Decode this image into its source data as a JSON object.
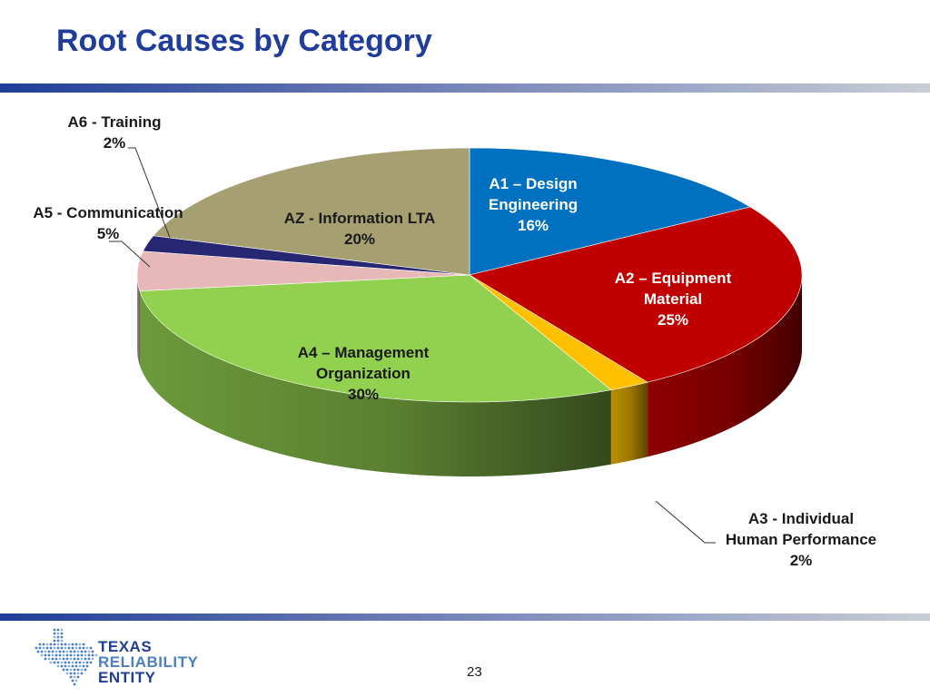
{
  "slide": {
    "title": "Root Causes by Category",
    "page_number": "23"
  },
  "logo": {
    "line1": "TEXAS",
    "line2": "RELIABILITY",
    "line3": "ENTITY"
  },
  "chart_data": {
    "type": "pie",
    "title": "",
    "start_angle_deg": 0,
    "direction": "clockwise",
    "slices": [
      {
        "label_lines": [
          "A1 – Design",
          "Engineering",
          "16%"
        ],
        "value": 16,
        "color": "#0070c0",
        "label_color": "#ffffff"
      },
      {
        "label_lines": [
          "A2 – Equipment",
          "Material",
          "25%"
        ],
        "value": 25,
        "color": "#c00000",
        "label_color": "#ffffff"
      },
      {
        "label_lines": [
          "A3 - Individual",
          "Human Performance",
          "2%"
        ],
        "value": 2,
        "color": "#ffc000",
        "label_color": "#1a1a1a"
      },
      {
        "label_lines": [
          "A4 – Management",
          "Organization",
          "30%"
        ],
        "value": 30,
        "color": "#92d050",
        "label_color": "#1a1a1a"
      },
      {
        "label_lines": [
          "A5 - Communication",
          "5%"
        ],
        "value": 5,
        "color": "#e6b9b8",
        "label_color": "#1a1a1a"
      },
      {
        "label_lines": [
          "A6 - Training",
          "2%"
        ],
        "value": 2,
        "color": "#262673",
        "label_color": "#1a1a1a"
      },
      {
        "label_lines": [
          "AZ - Information LTA",
          "20%"
        ],
        "value": 20,
        "color": "#a69f72",
        "label_color": "#1a1a1a"
      }
    ]
  }
}
